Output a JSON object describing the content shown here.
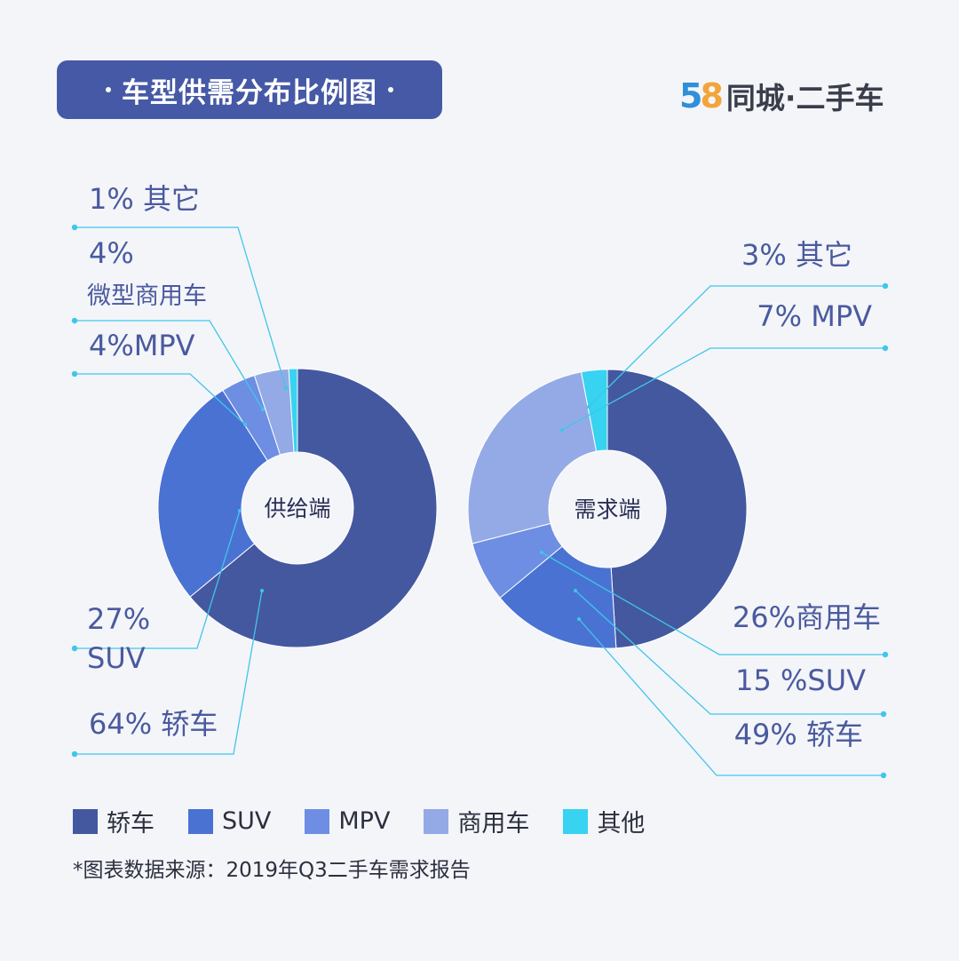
{
  "title": "车型供需分布比例图",
  "brand": {
    "num": [
      "5",
      "8"
    ],
    "text": "同城·二手车"
  },
  "legend": [
    {
      "label": "轿车",
      "color": "#44589f"
    },
    {
      "label": "SUV",
      "color": "#4a72d3"
    },
    {
      "label": "MPV",
      "color": "#6d8ee3"
    },
    {
      "label": "商用车",
      "color": "#94aae6"
    },
    {
      "label": "其他",
      "color": "#37d3f0"
    }
  ],
  "source_note": "*图表数据来源：2019年Q3二手车需求报告",
  "chart_data": [
    {
      "type": "pie",
      "center_label": "供给端",
      "slices": [
        {
          "label": "轿车",
          "value": 64,
          "color": "#44589f",
          "text": "64% 轿车"
        },
        {
          "label": "SUV",
          "value": 27,
          "color": "#4a72d3",
          "text": "27% SUV"
        },
        {
          "label": "MPV",
          "value": 4,
          "color": "#6d8ee3",
          "text": "4%MPV"
        },
        {
          "label": "微型商用车",
          "value": 4,
          "color": "#94aae6",
          "text": "4% 微型商用车"
        },
        {
          "label": "其它",
          "value": 1,
          "color": "#37d3f0",
          "text": "1% 其它"
        }
      ]
    },
    {
      "type": "pie",
      "center_label": "需求端",
      "slices": [
        {
          "label": "轿车",
          "value": 49,
          "color": "#44589f",
          "text": "49% 轿车"
        },
        {
          "label": "SUV",
          "value": 15,
          "color": "#4a72d3",
          "text": "15 %SUV"
        },
        {
          "label": "MPV",
          "value": 7,
          "color": "#6d8ee3",
          "text": "7% MPV"
        },
        {
          "label": "商用车",
          "value": 26,
          "color": "#94aae6",
          "text": "26%商用车"
        },
        {
          "label": "其它",
          "value": 3,
          "color": "#37d3f0",
          "text": "3% 其它"
        }
      ]
    }
  ]
}
